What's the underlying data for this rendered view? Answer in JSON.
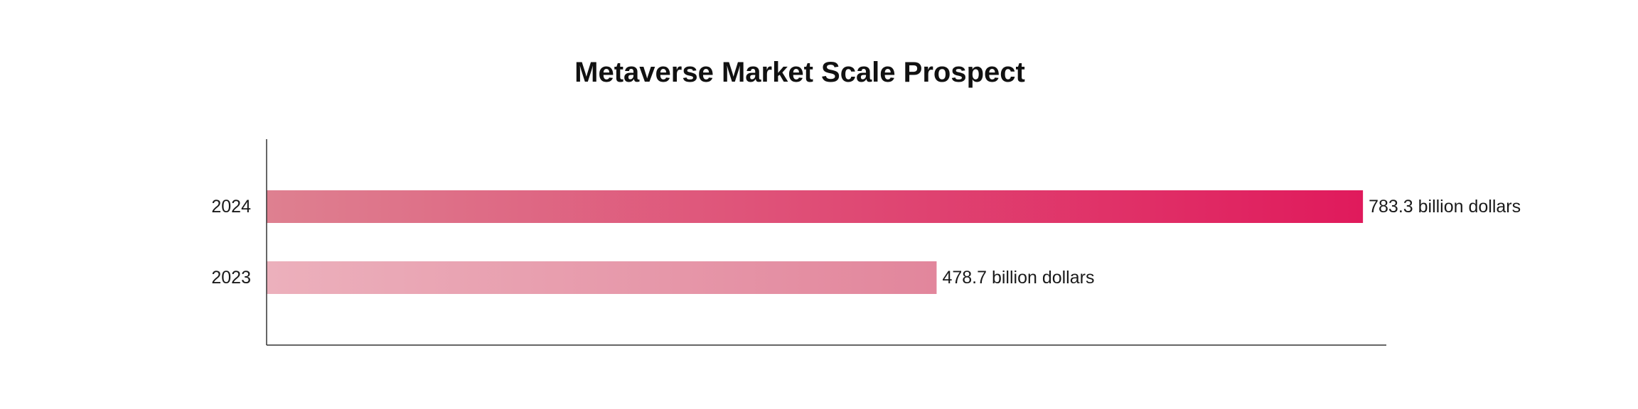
{
  "chart_data": {
    "type": "bar",
    "orientation": "horizontal",
    "title": "Metaverse Market Scale Prospect",
    "categories": [
      "2024",
      "2023"
    ],
    "values": [
      783.3,
      478.7
    ],
    "data_labels": [
      "783.3 billion dollars",
      "478.7 billion dollars"
    ],
    "unit": "billion dollars",
    "xlim": [
      0,
      800
    ],
    "grid": false,
    "legend": "none",
    "colors": {
      "bar_2024_start": "#DE8090",
      "bar_2024_end": "#E01A5C",
      "bar_2023_start": "#ECB0BC",
      "bar_2023_end": "#E2869C",
      "axis": "#333333"
    }
  }
}
